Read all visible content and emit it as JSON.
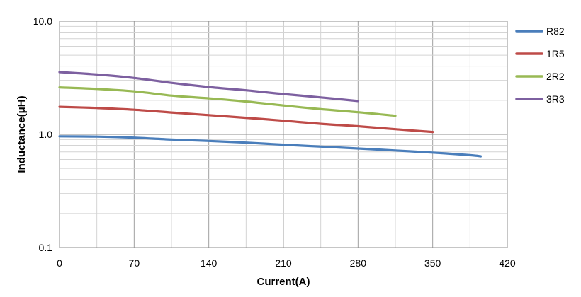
{
  "chart_data": {
    "type": "line",
    "title": "",
    "xlabel": "Current(A)",
    "ylabel": "Inductance(μH)",
    "xlim": [
      0,
      420
    ],
    "ylim": [
      0.1,
      10.0
    ],
    "y_scale": "log",
    "grid": true,
    "legend_position": "right",
    "x_ticks": [
      "0",
      "70",
      "140",
      "210",
      "280",
      "350",
      "420"
    ],
    "y_ticks": [
      "10.0",
      "1.0",
      "0.1"
    ],
    "series": [
      {
        "name": "R82",
        "color": "#4a7ebb",
        "points": [
          [
            0,
            0.96
          ],
          [
            35,
            0.955
          ],
          [
            70,
            0.935
          ],
          [
            105,
            0.9
          ],
          [
            140,
            0.875
          ],
          [
            175,
            0.845
          ],
          [
            210,
            0.81
          ],
          [
            245,
            0.78
          ],
          [
            280,
            0.75
          ],
          [
            315,
            0.72
          ],
          [
            350,
            0.69
          ],
          [
            385,
            0.655
          ],
          [
            395,
            0.64
          ]
        ]
      },
      {
        "name": "1R5",
        "color": "#be4b48",
        "points": [
          [
            0,
            1.75
          ],
          [
            35,
            1.71
          ],
          [
            70,
            1.65
          ],
          [
            105,
            1.56
          ],
          [
            140,
            1.48
          ],
          [
            175,
            1.4
          ],
          [
            210,
            1.32
          ],
          [
            245,
            1.24
          ],
          [
            280,
            1.18
          ],
          [
            315,
            1.11
          ],
          [
            350,
            1.05
          ]
        ]
      },
      {
        "name": "2R2",
        "color": "#98b954",
        "points": [
          [
            0,
            2.6
          ],
          [
            35,
            2.52
          ],
          [
            70,
            2.4
          ],
          [
            105,
            2.2
          ],
          [
            140,
            2.08
          ],
          [
            175,
            1.95
          ],
          [
            210,
            1.8
          ],
          [
            245,
            1.67
          ],
          [
            280,
            1.57
          ],
          [
            315,
            1.46
          ]
        ]
      },
      {
        "name": "3R3",
        "color": "#7d60a0",
        "points": [
          [
            0,
            3.55
          ],
          [
            35,
            3.38
          ],
          [
            70,
            3.15
          ],
          [
            105,
            2.85
          ],
          [
            140,
            2.62
          ],
          [
            175,
            2.45
          ],
          [
            210,
            2.27
          ],
          [
            245,
            2.12
          ],
          [
            280,
            1.97
          ]
        ]
      }
    ]
  }
}
